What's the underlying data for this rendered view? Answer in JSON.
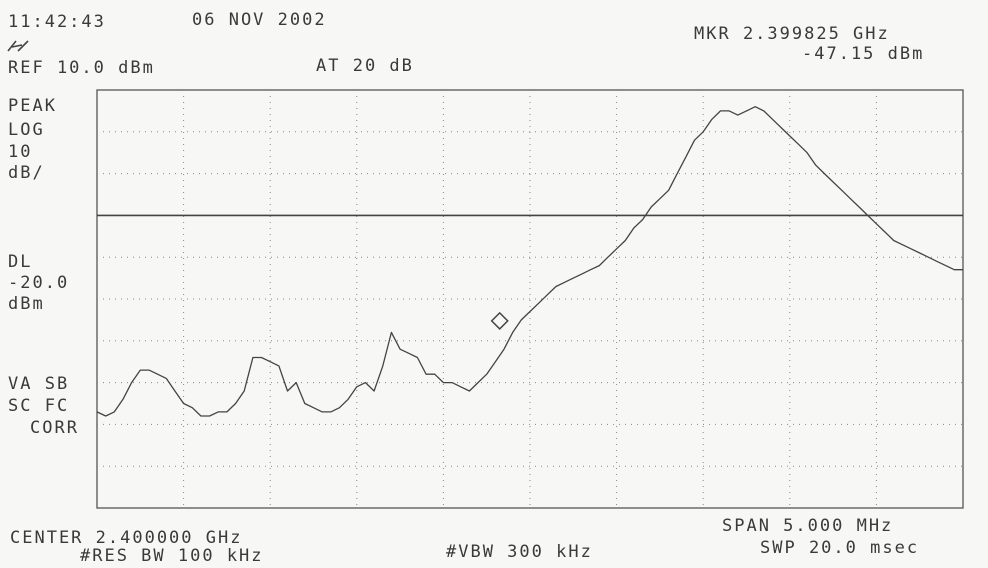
{
  "header": {
    "time": "11:42:43",
    "date": "06 NOV 2002",
    "logo_mark": "hp",
    "ref_level": "REF 10.0 dBm",
    "attenuation": "AT 20 dB",
    "marker_freq": "MKR 2.399825 GHz",
    "marker_level": "-47.15 dBm"
  },
  "left_panel": {
    "mode": "PEAK",
    "scale": "LOG",
    "scale_value": "10",
    "scale_unit": "dB/",
    "dl_label": "DL",
    "dl_value": "-20.0",
    "dl_unit": "dBm",
    "va_sb": "VA SB",
    "sc_fc": "SC FC",
    "corr": "CORR"
  },
  "footer": {
    "center": "CENTER 2.400000 GHz",
    "res_bw": "#RES BW 100 kHz",
    "vbw": "#VBW 300 kHz",
    "span": "SPAN 5.000 MHz",
    "sweep": "SWP 20.0 msec"
  },
  "chart_data": {
    "type": "line",
    "x_unit": "GHz",
    "y_unit": "dBm",
    "xlim": [
      2.3975,
      2.4025
    ],
    "ylim": [
      -90,
      10
    ],
    "grid": true,
    "display_line_dbm": -20.0,
    "marker": {
      "x": 2.399825,
      "y": -47.15
    },
    "series": [
      {
        "x": [
          2.3975,
          2.39755,
          2.3976,
          2.39765,
          2.3977,
          2.39775,
          2.3978,
          2.39785,
          2.3979,
          2.39795,
          2.398,
          2.39805,
          2.3981,
          2.39815,
          2.3982,
          2.39825,
          2.3983,
          2.39835,
          2.3984,
          2.39845,
          2.3985,
          2.39855,
          2.3986,
          2.39865,
          2.3987,
          2.39875,
          2.3988,
          2.39885,
          2.3989,
          2.39895,
          2.399,
          2.39905,
          2.3991,
          2.39915,
          2.3992,
          2.39925,
          2.3993,
          2.39935,
          2.3994,
          2.39945,
          2.3995,
          2.39955,
          2.3996,
          2.39965,
          2.3997,
          2.39975,
          2.3998,
          2.39985,
          2.3999,
          2.39995,
          2.4,
          2.40005,
          2.4001,
          2.40015,
          2.4002,
          2.40025,
          2.4003,
          2.40035,
          2.4004,
          2.40045,
          2.4005,
          2.40055,
          2.4006,
          2.40065,
          2.4007,
          2.40075,
          2.4008,
          2.40085,
          2.4009,
          2.40095,
          2.401,
          2.40105,
          2.4011,
          2.40115,
          2.4012,
          2.40125,
          2.4013,
          2.40135,
          2.4014,
          2.40145,
          2.4015,
          2.40155,
          2.4016,
          2.40165,
          2.4017,
          2.40175,
          2.4018,
          2.40185,
          2.4019,
          2.40195,
          2.402,
          2.40205,
          2.4021,
          2.40215,
          2.4022,
          2.40225,
          2.4023,
          2.40235,
          2.4024,
          2.40245,
          2.4025
        ],
        "y": [
          -67,
          -68,
          -67,
          -64,
          -60,
          -57,
          -57,
          -58,
          -59,
          -62,
          -65,
          -66,
          -68,
          -68,
          -67,
          -67,
          -65,
          -62,
          -54,
          -54,
          -55,
          -56,
          -62,
          -60,
          -65,
          -66,
          -67,
          -67,
          -66,
          -64,
          -61,
          -60,
          -62,
          -56,
          -48,
          -52,
          -53,
          -54,
          -58,
          -58,
          -60,
          -60,
          -61,
          -62,
          -60,
          -58,
          -55,
          -52,
          -48,
          -45,
          -43,
          -41,
          -39,
          -37,
          -36,
          -35,
          -34,
          -33,
          -32,
          -30,
          -28,
          -26,
          -23,
          -21,
          -18,
          -16,
          -14,
          -10,
          -6,
          -2,
          0,
          3,
          5,
          5,
          4,
          5,
          6,
          5,
          3,
          1,
          -1,
          -3,
          -5,
          -8,
          -10,
          -12,
          -14,
          -16,
          -18,
          -20,
          -22,
          -24,
          -26,
          -27,
          -28,
          -29,
          -30,
          -31,
          -32,
          -33,
          -33
        ]
      }
    ]
  }
}
